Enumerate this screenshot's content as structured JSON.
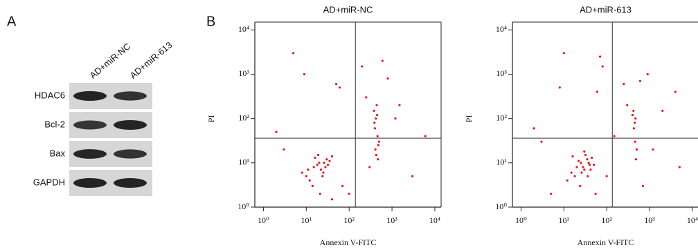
{
  "panel_a": {
    "label": "A",
    "columns": [
      "AD+miR-NC",
      "AD+miR-613"
    ],
    "rows": [
      "HDAC6",
      "Bcl-2",
      "Bax",
      "GAPDH"
    ]
  },
  "panel_b": {
    "label": "B"
  },
  "chart_data": [
    {
      "type": "scatter",
      "title": "AD+miR-NC",
      "x_label": "Annexin V-FITC",
      "y_label": "PI",
      "color": "#e8141b",
      "log_x": true,
      "log_y": true,
      "xlim": [
        0.63,
        14000
      ],
      "ylim": [
        1,
        15000
      ],
      "xticks": [
        {
          "value": 1,
          "label": "10⁰"
        },
        {
          "value": 10,
          "label": "10¹"
        },
        {
          "value": 100,
          "label": "10²"
        },
        {
          "value": 1000,
          "label": "10³"
        },
        {
          "value": 10000,
          "label": "10⁴"
        }
      ],
      "yticks": [
        {
          "value": 1,
          "label": "10⁰"
        },
        {
          "value": 10,
          "label": "10¹"
        },
        {
          "value": 100,
          "label": "10²"
        },
        {
          "value": 1000,
          "label": "10³"
        },
        {
          "value": 10000,
          "label": "10⁴"
        }
      ],
      "gate_x": 140,
      "gate_y": 36,
      "x": [
        10,
        15,
        20,
        25,
        30,
        12,
        18,
        22,
        35,
        40,
        8,
        14,
        28,
        16,
        24,
        19,
        32,
        11,
        26,
        21,
        380,
        420,
        450,
        400,
        500,
        430,
        470,
        410,
        390,
        460,
        440,
        480,
        60,
        2,
        5,
        800,
        1500,
        3000,
        50,
        3,
        200,
        100,
        6000,
        70,
        600,
        40,
        250,
        9,
        1200,
        300
      ],
      "y": [
        5,
        8,
        10,
        6,
        12,
        4,
        9,
        7,
        11,
        14,
        6,
        3,
        8,
        13,
        5,
        15,
        9,
        7,
        10,
        2,
        150,
        100,
        120,
        60,
        30,
        15,
        12,
        20,
        80,
        40,
        200,
        25,
        500,
        50,
        3000,
        800,
        200,
        5,
        600,
        20,
        1500,
        2,
        40,
        3,
        2000,
        1.5,
        300,
        1000,
        100,
        8
      ]
    },
    {
      "type": "scatter",
      "title": "AD+miR-613",
      "x_label": "Annexin V-FITC",
      "y_label": "PI",
      "color": "#e8141b",
      "log_x": true,
      "log_y": true,
      "xlim": [
        0.63,
        14000
      ],
      "ylim": [
        1,
        15000
      ],
      "xticks": [
        {
          "value": 1,
          "label": "10⁰"
        },
        {
          "value": 10,
          "label": "10¹"
        },
        {
          "value": 100,
          "label": "10²"
        },
        {
          "value": 1000,
          "label": "10³"
        },
        {
          "value": 10000,
          "label": "10⁴"
        }
      ],
      "yticks": [
        {
          "value": 1,
          "label": "10⁰"
        },
        {
          "value": 10,
          "label": "10¹"
        },
        {
          "value": 100,
          "label": "10²"
        },
        {
          "value": 1000,
          "label": "10³"
        },
        {
          "value": 10000,
          "label": "10⁴"
        }
      ],
      "gate_x": 135,
      "gate_y": 36,
      "x": [
        15,
        20,
        25,
        30,
        35,
        40,
        18,
        22,
        28,
        45,
        12,
        32,
        26,
        38,
        50,
        24,
        16,
        42,
        30,
        36,
        400,
        450,
        420,
        500,
        480,
        430,
        460,
        470,
        8,
        3,
        70,
        900,
        2000,
        5000,
        60,
        5,
        150,
        80,
        700,
        300,
        1200,
        10,
        250,
        2,
        4000,
        100,
        55,
        600
      ],
      "y": [
        6,
        8,
        10,
        7,
        12,
        9,
        5,
        11,
        8,
        13,
        4,
        15,
        6,
        10,
        9,
        3,
        14,
        7,
        18,
        5,
        120,
        80,
        150,
        20,
        12,
        60,
        30,
        100,
        500,
        30,
        2500,
        1000,
        150,
        8,
        400,
        2,
        40,
        1500,
        3,
        200,
        20,
        3000,
        600,
        60,
        400,
        5,
        2,
        700
      ]
    }
  ]
}
